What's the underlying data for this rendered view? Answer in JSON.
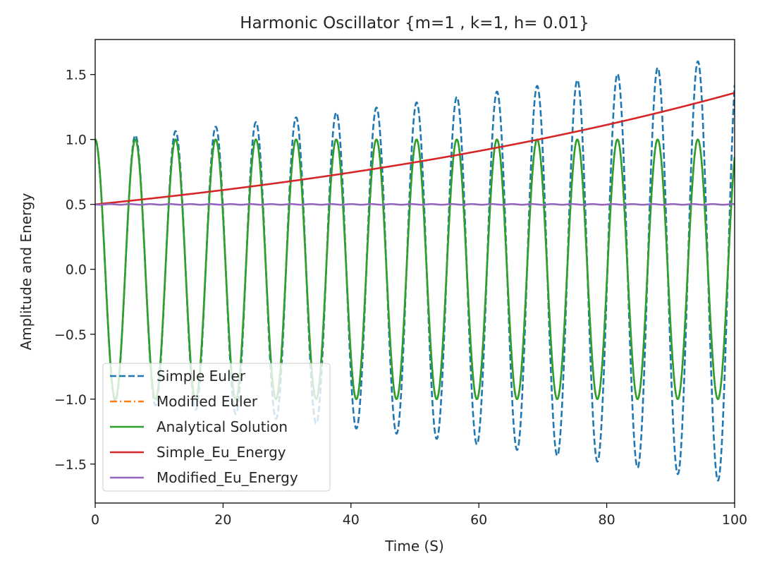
{
  "chart_data": {
    "type": "line",
    "title": "Harmonic Oscillator {m=1 , k=1, h= 0.01}",
    "xlabel": "Time (S)",
    "ylabel": "Amplitude and Energy",
    "xlim": [
      0,
      100
    ],
    "ylim": [
      -1.8,
      1.77
    ],
    "xticks": [
      0,
      20,
      40,
      60,
      80,
      100
    ],
    "xtick_labels": [
      "0",
      "20",
      "40",
      "60",
      "80",
      "100"
    ],
    "yticks": [
      -1.5,
      -1.0,
      -0.5,
      0.0,
      0.5,
      1.0,
      1.5
    ],
    "ytick_labels": [
      "−1.5",
      "−1.0",
      "−0.5",
      "0.0",
      "0.5",
      "1.0",
      "1.5"
    ],
    "grid": false,
    "legend_position": "lower-left",
    "model": {
      "m": 1,
      "k": 1,
      "h": 0.01,
      "x0": 1.0,
      "v0": 0.0
    },
    "series": [
      {
        "name": "Simple Euler",
        "color": "#1f77b4",
        "style": "dashed"
      },
      {
        "name": "Modified Euler",
        "color": "#ff7f0e",
        "style": "dashdot"
      },
      {
        "name": "Analytical Solution",
        "color": "#2ca02c",
        "style": "solid"
      },
      {
        "name": "Simple_Eu_Energy",
        "color": "#d62728",
        "style": "solid"
      },
      {
        "name": "Modified_Eu_Energy",
        "color": "#9467bd",
        "style": "solid"
      }
    ]
  }
}
